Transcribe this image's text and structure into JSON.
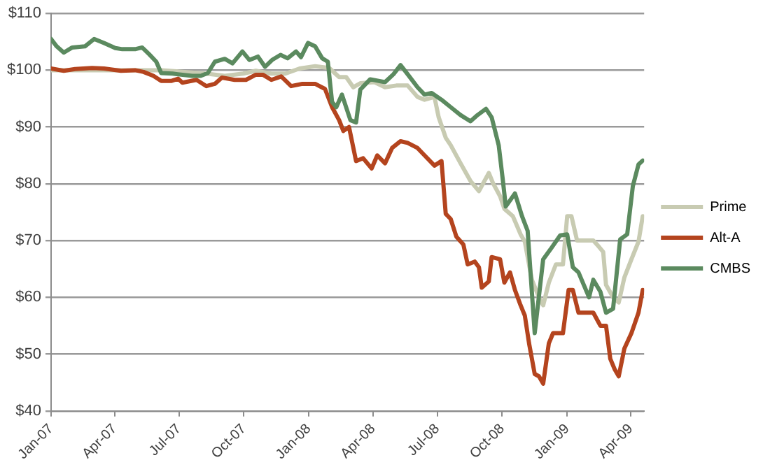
{
  "chart_data": {
    "type": "line",
    "xlim": [
      "2007-01-01",
      "2009-04-20"
    ],
    "xticks": [
      {
        "value": "2007-01-01",
        "label": "Jan-07"
      },
      {
        "value": "2007-04-01",
        "label": "Apr-07"
      },
      {
        "value": "2007-07-01",
        "label": "Jul-07"
      },
      {
        "value": "2007-10-01",
        "label": "Oct-07"
      },
      {
        "value": "2008-01-01",
        "label": "Jan-08"
      },
      {
        "value": "2008-04-01",
        "label": "Apr-08"
      },
      {
        "value": "2008-07-01",
        "label": "Jul-08"
      },
      {
        "value": "2008-10-01",
        "label": "Oct-08"
      },
      {
        "value": "2009-01-01",
        "label": "Jan-09"
      },
      {
        "value": "2009-04-01",
        "label": "Apr-09"
      }
    ],
    "ylim": [
      40,
      110
    ],
    "yticks": [
      {
        "value": 40,
        "label": "$40"
      },
      {
        "value": 50,
        "label": "$50"
      },
      {
        "value": 60,
        "label": "$60"
      },
      {
        "value": 70,
        "label": "$70"
      },
      {
        "value": 80,
        "label": "$80"
      },
      {
        "value": 90,
        "label": "$90"
      },
      {
        "value": 100,
        "label": "$100"
      },
      {
        "value": 110,
        "label": "$110"
      }
    ],
    "grid": "y",
    "legend": "right",
    "marker": "none",
    "line_style": "solid",
    "series": [
      {
        "name": "Prime",
        "color": "#c8cbb2",
        "x": [
          "2007-01-01",
          "2007-06-06",
          "2007-08-09",
          "2007-09-04",
          "2007-09-30",
          "2007-10-18",
          "2007-11-09",
          "2007-11-29",
          "2007-12-19",
          "2008-01-10",
          "2008-01-30",
          "2008-02-13",
          "2008-02-23",
          "2008-03-04",
          "2008-03-14",
          "2008-04-03",
          "2008-04-18",
          "2008-05-04",
          "2008-05-20",
          "2008-06-03",
          "2008-06-13",
          "2008-06-27",
          "2008-07-03",
          "2008-07-13",
          "2008-07-20",
          "2008-08-03",
          "2008-08-17",
          "2008-08-29",
          "2008-09-12",
          "2008-09-18",
          "2008-09-28",
          "2008-10-04",
          "2008-10-16",
          "2008-10-27",
          "2008-11-02",
          "2008-11-12",
          "2008-11-22",
          "2008-11-28",
          "2008-12-06",
          "2008-12-16",
          "2008-12-26",
          "2009-01-01",
          "2009-01-07",
          "2009-01-15",
          "2009-02-07",
          "2009-02-15",
          "2009-02-21",
          "2009-02-25",
          "2009-03-07",
          "2009-03-15",
          "2009-03-23",
          "2009-04-02",
          "2009-04-12",
          "2009-04-18"
        ],
        "values": [
          100,
          100,
          99.4,
          99,
          99.4,
          99.9,
          99.4,
          99.4,
          100.3,
          100.7,
          100.4,
          98.8,
          98.8,
          97,
          97.7,
          97.9,
          97,
          97.3,
          97.3,
          95.3,
          94.8,
          95.3,
          91.7,
          88.1,
          86.8,
          83.6,
          80.5,
          78.7,
          81.9,
          80.1,
          77.8,
          75.6,
          74.3,
          71.1,
          69.8,
          63.1,
          60,
          58.6,
          62.6,
          65.8,
          65.8,
          74.3,
          74.3,
          70,
          70,
          68.9,
          68,
          62.2,
          60,
          59.1,
          63.5,
          66.7,
          69.8,
          74.3
        ]
      },
      {
        "name": "Alt-A",
        "color": "#b4441e",
        "x": [
          "2007-01-01",
          "2007-01-19",
          "2007-02-04",
          "2007-02-28",
          "2007-03-17",
          "2007-04-10",
          "2007-04-30",
          "2007-05-12",
          "2007-05-26",
          "2007-06-06",
          "2007-06-20",
          "2007-06-30",
          "2007-07-06",
          "2007-07-26",
          "2007-08-09",
          "2007-08-21",
          "2007-08-31",
          "2007-09-18",
          "2007-10-04",
          "2007-10-18",
          "2007-10-28",
          "2007-11-09",
          "2007-11-23",
          "2007-12-07",
          "2007-12-23",
          "2008-01-10",
          "2008-01-24",
          "2008-02-03",
          "2008-02-13",
          "2008-02-19",
          "2008-02-27",
          "2008-03-08",
          "2008-03-18",
          "2008-03-30",
          "2008-04-07",
          "2008-04-18",
          "2008-04-28",
          "2008-05-10",
          "2008-05-20",
          "2008-06-03",
          "2008-06-13",
          "2008-06-27",
          "2008-07-07",
          "2008-07-13",
          "2008-07-20",
          "2008-07-28",
          "2008-08-07",
          "2008-08-13",
          "2008-08-23",
          "2008-08-29",
          "2008-09-02",
          "2008-09-12",
          "2008-09-16",
          "2008-09-28",
          "2008-10-04",
          "2008-10-12",
          "2008-10-19",
          "2008-10-27",
          "2008-11-02",
          "2008-11-08",
          "2008-11-16",
          "2008-11-22",
          "2008-11-28",
          "2008-12-06",
          "2008-12-12",
          "2008-12-26",
          "2009-01-03",
          "2009-01-09",
          "2009-01-17",
          "2009-02-07",
          "2009-02-17",
          "2009-02-25",
          "2009-03-03",
          "2009-03-09",
          "2009-03-15",
          "2009-03-23",
          "2009-04-02",
          "2009-04-12",
          "2009-04-18"
        ],
        "values": [
          100.3,
          99.9,
          100.2,
          100.4,
          100.3,
          99.9,
          100,
          99.7,
          99,
          98.1,
          98.1,
          98.5,
          97.8,
          98.3,
          97.2,
          97.6,
          98.7,
          98.3,
          98.3,
          99.2,
          99.2,
          98.3,
          98.9,
          97.2,
          97.6,
          97.6,
          96.7,
          93.5,
          91.2,
          89.3,
          90,
          84,
          84.5,
          82.7,
          85,
          83.6,
          86.3,
          87.5,
          87.2,
          86.3,
          85,
          83.2,
          84,
          74.7,
          73.8,
          70.7,
          69.3,
          65.8,
          66.3,
          65.3,
          61.7,
          62.8,
          67.1,
          66.7,
          62.6,
          64.4,
          61.3,
          58.6,
          56.8,
          51.9,
          46.5,
          46.1,
          44.8,
          51.9,
          53.7,
          53.7,
          61.3,
          61.3,
          57.3,
          57.3,
          55,
          55,
          49.2,
          47.4,
          46.1,
          51,
          53.7,
          57.3,
          61.3
        ]
      },
      {
        "name": "CMBS",
        "color": "#5b8a5f",
        "x": [
          "2007-01-01",
          "2007-01-09",
          "2007-01-19",
          "2007-01-31",
          "2007-02-18",
          "2007-03-03",
          "2007-03-17",
          "2007-04-02",
          "2007-04-12",
          "2007-04-30",
          "2007-05-10",
          "2007-05-20",
          "2007-05-30",
          "2007-06-06",
          "2007-06-22",
          "2007-07-20",
          "2007-08-01",
          "2007-08-11",
          "2007-08-21",
          "2007-09-04",
          "2007-09-15",
          "2007-09-29",
          "2007-10-09",
          "2007-10-21",
          "2007-10-31",
          "2007-11-10",
          "2007-11-22",
          "2007-12-02",
          "2007-12-14",
          "2007-12-21",
          "2007-12-31",
          "2008-01-10",
          "2008-01-20",
          "2008-01-28",
          "2008-02-03",
          "2008-02-09",
          "2008-02-17",
          "2008-02-29",
          "2008-03-08",
          "2008-03-14",
          "2008-03-28",
          "2008-04-18",
          "2008-04-30",
          "2008-05-10",
          "2008-05-20",
          "2008-06-03",
          "2008-06-13",
          "2008-06-23",
          "2008-07-07",
          "2008-07-20",
          "2008-08-03",
          "2008-08-17",
          "2008-08-27",
          "2008-09-08",
          "2008-09-16",
          "2008-09-26",
          "2008-10-02",
          "2008-10-06",
          "2008-10-19",
          "2008-10-29",
          "2008-11-06",
          "2008-11-16",
          "2008-11-28",
          "2008-12-08",
          "2008-12-22",
          "2009-01-01",
          "2009-01-09",
          "2009-01-17",
          "2009-02-01",
          "2009-02-07",
          "2009-02-17",
          "2009-02-25",
          "2009-03-07",
          "2009-03-17",
          "2009-03-27",
          "2009-04-04",
          "2009-04-12",
          "2009-04-18"
        ],
        "values": [
          105.5,
          104.2,
          103.1,
          104,
          104.2,
          105.5,
          104.8,
          103.9,
          103.7,
          103.7,
          104,
          102.8,
          101.5,
          99.5,
          99.4,
          99,
          99,
          99.5,
          101.5,
          102,
          101.2,
          103.3,
          101.8,
          102.4,
          100.6,
          101.8,
          102.7,
          102.1,
          103.3,
          102.3,
          104.8,
          104.2,
          102.1,
          101.5,
          94.4,
          93.5,
          95.7,
          91.2,
          90.8,
          96.6,
          98.4,
          97.9,
          99.3,
          100.9,
          99.3,
          97,
          95.7,
          96,
          94.8,
          93.5,
          92.1,
          91,
          92.1,
          93.2,
          91.7,
          86.8,
          80.5,
          76,
          78.3,
          74.3,
          71.7,
          53.7,
          66.7,
          68.4,
          70.9,
          71.1,
          65.3,
          64.4,
          60,
          63.1,
          61,
          57.3,
          58,
          70.2,
          71.1,
          79.6,
          83.4,
          84.1
        ]
      }
    ]
  }
}
